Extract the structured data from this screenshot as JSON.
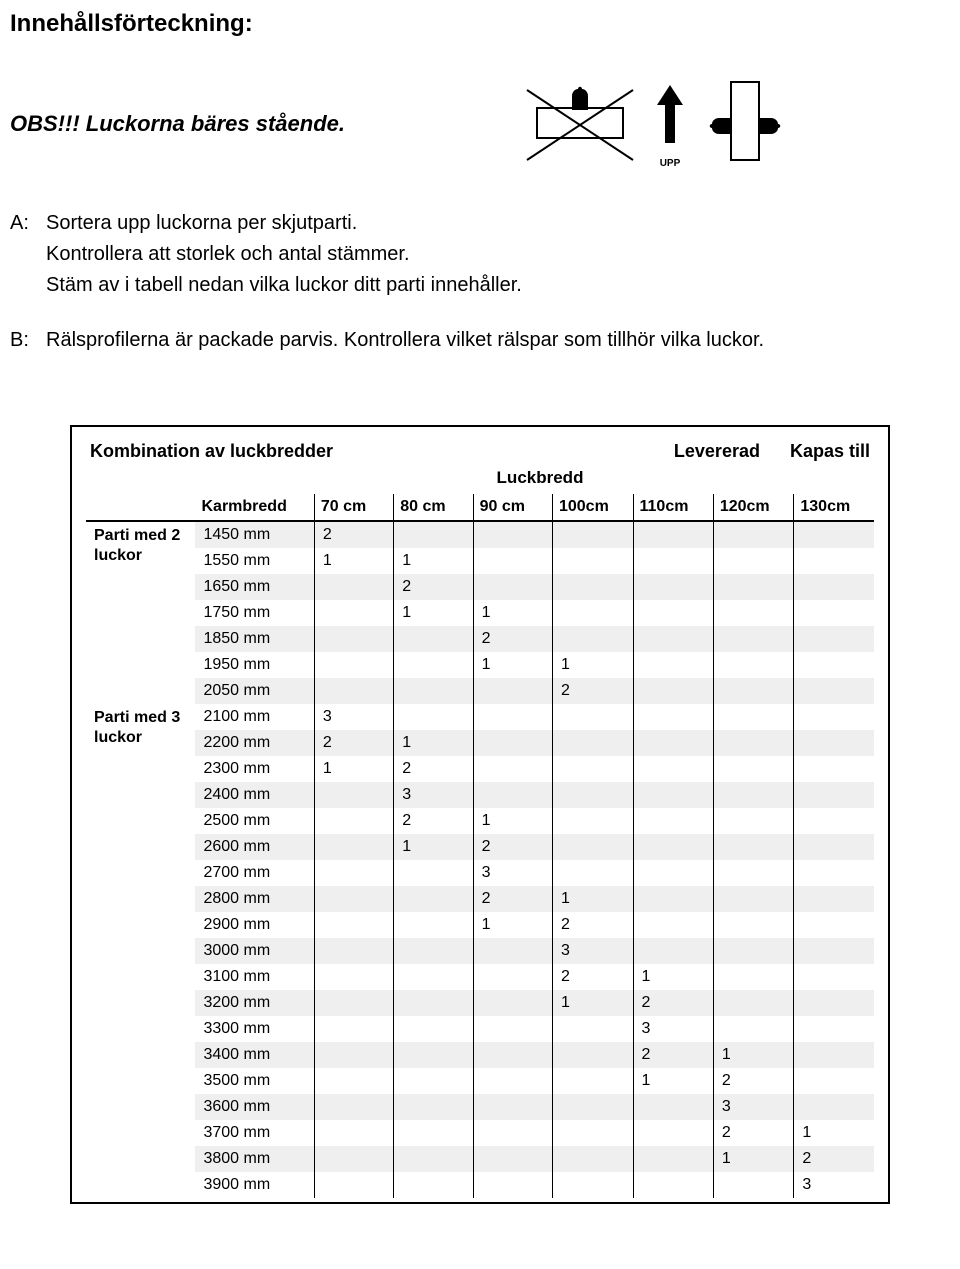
{
  "title": "Innehållsförteckning:",
  "obs_text": "OBS!!! Luckorna bäres stående.",
  "upp_label": "UPP",
  "instructions": [
    {
      "label": "A:",
      "text": "Sortera upp luckorna per skjutparti.\nKontrollera att storlek och antal stämmer.\nStäm av i tabell nedan vilka luckor ditt parti innehåller."
    },
    {
      "label": "B:",
      "text": "Rälsprofilerna är packade parvis. Kontrollera vilket rälspar som tillhör vilka luckor."
    }
  ],
  "table": {
    "header_left": "Kombination av luckbredder",
    "header_right_1": "Levererad",
    "header_right_2": "Kapas till",
    "subhead": "Luckbredd",
    "karmbredd_label": "Karmbredd",
    "columns": [
      "70 cm",
      "80 cm",
      "90 cm",
      "100cm",
      "110cm",
      "120cm",
      "130cm"
    ],
    "groups": [
      {
        "label": "Parti med 2 luckor",
        "rows": [
          {
            "karm": "1450 mm",
            "vals": [
              "2",
              "",
              "",
              "",
              "",
              "",
              ""
            ]
          },
          {
            "karm": "1550 mm",
            "vals": [
              "1",
              "1",
              "",
              "",
              "",
              "",
              ""
            ]
          },
          {
            "karm": "1650 mm",
            "vals": [
              "",
              "2",
              "",
              "",
              "",
              "",
              ""
            ]
          },
          {
            "karm": "1750 mm",
            "vals": [
              "",
              "1",
              "1",
              "",
              "",
              "",
              ""
            ]
          },
          {
            "karm": "1850 mm",
            "vals": [
              "",
              "",
              "2",
              "",
              "",
              "",
              ""
            ]
          },
          {
            "karm": "1950 mm",
            "vals": [
              "",
              "",
              "1",
              "1",
              "",
              "",
              ""
            ]
          },
          {
            "karm": "2050 mm",
            "vals": [
              "",
              "",
              "",
              "2",
              "",
              "",
              ""
            ]
          }
        ]
      },
      {
        "label": "Parti med 3 luckor",
        "rows": [
          {
            "karm": "2100 mm",
            "vals": [
              "3",
              "",
              "",
              "",
              "",
              "",
              ""
            ]
          },
          {
            "karm": "2200 mm",
            "vals": [
              "2",
              "1",
              "",
              "",
              "",
              "",
              ""
            ]
          },
          {
            "karm": "2300 mm",
            "vals": [
              "1",
              "2",
              "",
              "",
              "",
              "",
              ""
            ]
          },
          {
            "karm": "2400 mm",
            "vals": [
              "",
              "3",
              "",
              "",
              "",
              "",
              ""
            ]
          },
          {
            "karm": "2500 mm",
            "vals": [
              "",
              "2",
              "1",
              "",
              "",
              "",
              ""
            ]
          },
          {
            "karm": "2600 mm",
            "vals": [
              "",
              "1",
              "2",
              "",
              "",
              "",
              ""
            ]
          },
          {
            "karm": "2700 mm",
            "vals": [
              "",
              "",
              "3",
              "",
              "",
              "",
              ""
            ]
          },
          {
            "karm": "2800 mm",
            "vals": [
              "",
              "",
              "2",
              "1",
              "",
              "",
              ""
            ]
          },
          {
            "karm": "2900 mm",
            "vals": [
              "",
              "",
              "1",
              "2",
              "",
              "",
              ""
            ]
          },
          {
            "karm": "3000 mm",
            "vals": [
              "",
              "",
              "",
              "3",
              "",
              "",
              ""
            ]
          },
          {
            "karm": "3100 mm",
            "vals": [
              "",
              "",
              "",
              "2",
              "1",
              "",
              ""
            ]
          },
          {
            "karm": "3200 mm",
            "vals": [
              "",
              "",
              "",
              "1",
              "2",
              "",
              ""
            ]
          },
          {
            "karm": "3300 mm",
            "vals": [
              "",
              "",
              "",
              "",
              "3",
              "",
              ""
            ]
          },
          {
            "karm": "3400 mm",
            "vals": [
              "",
              "",
              "",
              "",
              "2",
              "1",
              ""
            ]
          },
          {
            "karm": "3500 mm",
            "vals": [
              "",
              "",
              "",
              "",
              "1",
              "2",
              ""
            ]
          },
          {
            "karm": "3600 mm",
            "vals": [
              "",
              "",
              "",
              "",
              "",
              "3",
              ""
            ]
          },
          {
            "karm": "3700 mm",
            "vals": [
              "",
              "",
              "",
              "",
              "",
              "2",
              "1"
            ]
          },
          {
            "karm": "3800 mm",
            "vals": [
              "",
              "",
              "",
              "",
              "",
              "1",
              "2"
            ]
          },
          {
            "karm": "3900 mm",
            "vals": [
              "",
              "",
              "",
              "",
              "",
              "",
              "3"
            ]
          }
        ]
      }
    ]
  },
  "style": {
    "background": "#ffffff",
    "text_color": "#000000",
    "shade_color": "#efefef",
    "border_color": "#000000",
    "font_family": "Arial, Helvetica, sans-serif",
    "title_fontsize": 24,
    "body_fontsize": 20,
    "table_fontsize": 16
  }
}
